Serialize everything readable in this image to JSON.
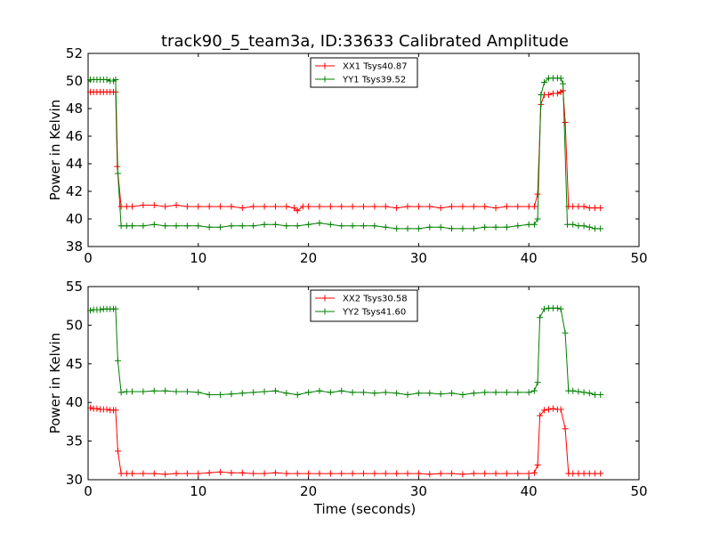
{
  "title": "track90_5_team3a, ID:33633 Calibrated Amplitude",
  "xlabel": "Time (seconds)",
  "colors": {
    "series1": "#ff0000",
    "series2": "#008000"
  },
  "chart_data": [
    {
      "type": "line",
      "title": "track90_5_team3a, ID:33633 Calibrated Amplitude",
      "xlabel": "",
      "ylabel": "Power in Kelvin",
      "xlim": [
        0,
        50
      ],
      "ylim": [
        38,
        52
      ],
      "xticks": [
        "0",
        "10",
        "20",
        "30",
        "40",
        "50"
      ],
      "yticks": [
        "38",
        "40",
        "42",
        "44",
        "46",
        "48",
        "50",
        "52"
      ],
      "grid": false,
      "legend_position": "top-center",
      "series": [
        {
          "name": "XX1 Tsys40.87",
          "color": "#ff0000",
          "marker": "+",
          "points": [
            [
              0.2,
              49.2
            ],
            [
              0.5,
              49.2
            ],
            [
              0.8,
              49.2
            ],
            [
              1.1,
              49.2
            ],
            [
              1.4,
              49.2
            ],
            [
              1.7,
              49.2
            ],
            [
              2.0,
              49.2
            ],
            [
              2.3,
              49.2
            ],
            [
              2.5,
              49.2
            ],
            [
              2.65,
              43.8
            ],
            [
              3.0,
              40.9
            ],
            [
              3.5,
              40.9
            ],
            [
              4.0,
              40.9
            ],
            [
              5.0,
              41.0
            ],
            [
              6.0,
              41.0
            ],
            [
              7.0,
              40.9
            ],
            [
              8.0,
              41.0
            ],
            [
              9.0,
              40.9
            ],
            [
              10.0,
              40.9
            ],
            [
              11.0,
              40.9
            ],
            [
              12.0,
              40.9
            ],
            [
              13.0,
              40.9
            ],
            [
              14.0,
              40.8
            ],
            [
              15.0,
              40.9
            ],
            [
              16.0,
              40.9
            ],
            [
              17.0,
              40.9
            ],
            [
              18.0,
              40.9
            ],
            [
              18.7,
              40.8
            ],
            [
              19.0,
              40.6
            ],
            [
              19.5,
              40.9
            ],
            [
              20.0,
              40.9
            ],
            [
              21.0,
              40.9
            ],
            [
              22.0,
              40.9
            ],
            [
              23.0,
              40.9
            ],
            [
              24.0,
              40.9
            ],
            [
              25.0,
              40.9
            ],
            [
              26.0,
              40.9
            ],
            [
              27.0,
              40.9
            ],
            [
              28.0,
              40.8
            ],
            [
              29.0,
              40.9
            ],
            [
              30.0,
              40.9
            ],
            [
              31.0,
              40.9
            ],
            [
              32.0,
              40.8
            ],
            [
              33.0,
              40.9
            ],
            [
              34.0,
              40.9
            ],
            [
              35.0,
              40.9
            ],
            [
              36.0,
              40.9
            ],
            [
              37.0,
              40.8
            ],
            [
              38.0,
              40.9
            ],
            [
              39.0,
              40.9
            ],
            [
              40.0,
              40.9
            ],
            [
              40.5,
              40.9
            ],
            [
              40.8,
              41.8
            ],
            [
              41.1,
              48.3
            ],
            [
              41.4,
              49.0
            ],
            [
              41.8,
              49.0
            ],
            [
              42.2,
              49.1
            ],
            [
              42.6,
              49.1
            ],
            [
              42.9,
              49.2
            ],
            [
              43.1,
              49.3
            ],
            [
              43.3,
              47.0
            ],
            [
              43.6,
              40.9
            ],
            [
              44.0,
              40.9
            ],
            [
              44.5,
              40.9
            ],
            [
              45.0,
              40.9
            ],
            [
              45.5,
              40.8
            ],
            [
              46.0,
              40.8
            ],
            [
              46.5,
              40.8
            ]
          ]
        },
        {
          "name": "YY1 Tsys39.52",
          "color": "#008000",
          "marker": "+",
          "points": [
            [
              0.2,
              50.1
            ],
            [
              0.5,
              50.1
            ],
            [
              0.8,
              50.1
            ],
            [
              1.1,
              50.1
            ],
            [
              1.4,
              50.1
            ],
            [
              1.7,
              50.1
            ],
            [
              2.0,
              50.0
            ],
            [
              2.3,
              50.0
            ],
            [
              2.5,
              50.1
            ],
            [
              2.7,
              43.3
            ],
            [
              3.0,
              39.5
            ],
            [
              3.5,
              39.5
            ],
            [
              4.0,
              39.5
            ],
            [
              5.0,
              39.5
            ],
            [
              6.0,
              39.6
            ],
            [
              7.0,
              39.5
            ],
            [
              8.0,
              39.5
            ],
            [
              9.0,
              39.5
            ],
            [
              10.0,
              39.5
            ],
            [
              11.0,
              39.4
            ],
            [
              12.0,
              39.4
            ],
            [
              13.0,
              39.5
            ],
            [
              14.0,
              39.5
            ],
            [
              15.0,
              39.5
            ],
            [
              16.0,
              39.6
            ],
            [
              17.0,
              39.6
            ],
            [
              18.0,
              39.5
            ],
            [
              19.0,
              39.5
            ],
            [
              20.0,
              39.6
            ],
            [
              21.0,
              39.7
            ],
            [
              22.0,
              39.6
            ],
            [
              23.0,
              39.5
            ],
            [
              24.0,
              39.5
            ],
            [
              25.0,
              39.5
            ],
            [
              26.0,
              39.5
            ],
            [
              27.0,
              39.4
            ],
            [
              28.0,
              39.3
            ],
            [
              29.0,
              39.3
            ],
            [
              30.0,
              39.3
            ],
            [
              31.0,
              39.4
            ],
            [
              32.0,
              39.4
            ],
            [
              33.0,
              39.3
            ],
            [
              34.0,
              39.3
            ],
            [
              35.0,
              39.3
            ],
            [
              36.0,
              39.4
            ],
            [
              37.0,
              39.4
            ],
            [
              38.0,
              39.4
            ],
            [
              39.0,
              39.5
            ],
            [
              40.0,
              39.6
            ],
            [
              40.5,
              39.6
            ],
            [
              40.8,
              40.0
            ],
            [
              41.1,
              49.0
            ],
            [
              41.4,
              49.9
            ],
            [
              41.8,
              50.2
            ],
            [
              42.2,
              50.2
            ],
            [
              42.6,
              50.2
            ],
            [
              42.9,
              50.2
            ],
            [
              43.1,
              49.8
            ],
            [
              43.5,
              39.6
            ],
            [
              44.0,
              39.6
            ],
            [
              44.5,
              39.5
            ],
            [
              45.0,
              39.5
            ],
            [
              45.5,
              39.4
            ],
            [
              46.0,
              39.3
            ],
            [
              46.5,
              39.3
            ]
          ]
        }
      ]
    },
    {
      "type": "line",
      "title": "",
      "xlabel": "Time (seconds)",
      "ylabel": "Power in Kelvin",
      "xlim": [
        0,
        50
      ],
      "ylim": [
        30,
        55
      ],
      "xticks": [
        "0",
        "10",
        "20",
        "30",
        "40",
        "50"
      ],
      "yticks": [
        "30",
        "35",
        "40",
        "45",
        "50",
        "55"
      ],
      "grid": false,
      "legend_position": "top-center",
      "series": [
        {
          "name": "XX2 Tsys30.58",
          "color": "#ff0000",
          "marker": "+",
          "points": [
            [
              0.2,
              39.3
            ],
            [
              0.5,
              39.2
            ],
            [
              0.8,
              39.2
            ],
            [
              1.1,
              39.1
            ],
            [
              1.4,
              39.1
            ],
            [
              1.7,
              39.1
            ],
            [
              2.0,
              39.0
            ],
            [
              2.3,
              39.0
            ],
            [
              2.5,
              39.0
            ],
            [
              2.7,
              33.7
            ],
            [
              3.0,
              30.8
            ],
            [
              3.5,
              30.8
            ],
            [
              4.0,
              30.8
            ],
            [
              5.0,
              30.8
            ],
            [
              6.0,
              30.8
            ],
            [
              7.0,
              30.7
            ],
            [
              8.0,
              30.8
            ],
            [
              9.0,
              30.8
            ],
            [
              10.0,
              30.8
            ],
            [
              11.0,
              30.9
            ],
            [
              12.0,
              31.0
            ],
            [
              13.0,
              30.9
            ],
            [
              14.0,
              30.9
            ],
            [
              15.0,
              30.8
            ],
            [
              16.0,
              30.8
            ],
            [
              17.0,
              30.9
            ],
            [
              18.0,
              30.8
            ],
            [
              19.0,
              30.8
            ],
            [
              20.0,
              30.8
            ],
            [
              21.0,
              30.8
            ],
            [
              22.0,
              30.8
            ],
            [
              23.0,
              30.8
            ],
            [
              24.0,
              30.8
            ],
            [
              25.0,
              30.8
            ],
            [
              26.0,
              30.8
            ],
            [
              27.0,
              30.8
            ],
            [
              28.0,
              30.8
            ],
            [
              29.0,
              30.8
            ],
            [
              30.0,
              30.8
            ],
            [
              31.0,
              30.7
            ],
            [
              32.0,
              30.8
            ],
            [
              33.0,
              30.8
            ],
            [
              34.0,
              30.7
            ],
            [
              35.0,
              30.8
            ],
            [
              36.0,
              30.8
            ],
            [
              37.0,
              30.8
            ],
            [
              38.0,
              30.8
            ],
            [
              39.0,
              30.8
            ],
            [
              40.0,
              30.8
            ],
            [
              40.5,
              30.9
            ],
            [
              40.8,
              31.9
            ],
            [
              41.0,
              38.3
            ],
            [
              41.4,
              39.0
            ],
            [
              41.8,
              39.1
            ],
            [
              42.2,
              39.2
            ],
            [
              42.6,
              39.1
            ],
            [
              42.9,
              39.1
            ],
            [
              43.3,
              36.6
            ],
            [
              43.6,
              30.8
            ],
            [
              44.0,
              30.8
            ],
            [
              44.5,
              30.8
            ],
            [
              45.0,
              30.8
            ],
            [
              45.5,
              30.8
            ],
            [
              46.0,
              30.8
            ],
            [
              46.5,
              30.8
            ]
          ]
        },
        {
          "name": "YY2 Tsys41.60",
          "color": "#008000",
          "marker": "+",
          "points": [
            [
              0.2,
              51.9
            ],
            [
              0.5,
              52.0
            ],
            [
              0.8,
              52.0
            ],
            [
              1.1,
              52.0
            ],
            [
              1.4,
              52.1
            ],
            [
              1.7,
              52.1
            ],
            [
              2.0,
              52.1
            ],
            [
              2.3,
              52.1
            ],
            [
              2.5,
              52.1
            ],
            [
              2.7,
              45.4
            ],
            [
              3.0,
              41.3
            ],
            [
              3.5,
              41.4
            ],
            [
              4.0,
              41.4
            ],
            [
              5.0,
              41.4
            ],
            [
              6.0,
              41.5
            ],
            [
              7.0,
              41.5
            ],
            [
              8.0,
              41.4
            ],
            [
              9.0,
              41.4
            ],
            [
              10.0,
              41.3
            ],
            [
              11.0,
              41.0
            ],
            [
              12.0,
              41.0
            ],
            [
              13.0,
              41.1
            ],
            [
              14.0,
              41.2
            ],
            [
              15.0,
              41.3
            ],
            [
              16.0,
              41.4
            ],
            [
              17.0,
              41.5
            ],
            [
              18.0,
              41.2
            ],
            [
              19.0,
              41.0
            ],
            [
              20.0,
              41.3
            ],
            [
              21.0,
              41.5
            ],
            [
              22.0,
              41.3
            ],
            [
              23.0,
              41.5
            ],
            [
              24.0,
              41.3
            ],
            [
              25.0,
              41.3
            ],
            [
              26.0,
              41.2
            ],
            [
              27.0,
              41.3
            ],
            [
              28.0,
              41.2
            ],
            [
              29.0,
              41.0
            ],
            [
              30.0,
              41.2
            ],
            [
              31.0,
              41.2
            ],
            [
              32.0,
              41.1
            ],
            [
              33.0,
              41.2
            ],
            [
              34.0,
              41.0
            ],
            [
              35.0,
              41.2
            ],
            [
              36.0,
              41.3
            ],
            [
              37.0,
              41.3
            ],
            [
              38.0,
              41.3
            ],
            [
              39.0,
              41.3
            ],
            [
              40.0,
              41.3
            ],
            [
              40.5,
              41.5
            ],
            [
              40.8,
              42.6
            ],
            [
              41.0,
              51.0
            ],
            [
              41.4,
              52.1
            ],
            [
              41.8,
              52.2
            ],
            [
              42.2,
              52.2
            ],
            [
              42.6,
              52.2
            ],
            [
              42.9,
              52.1
            ],
            [
              43.3,
              49.0
            ],
            [
              43.6,
              41.5
            ],
            [
              44.0,
              41.5
            ],
            [
              44.5,
              41.4
            ],
            [
              45.0,
              41.3
            ],
            [
              45.5,
              41.2
            ],
            [
              46.0,
              41.0
            ],
            [
              46.5,
              41.0
            ]
          ]
        }
      ]
    }
  ]
}
